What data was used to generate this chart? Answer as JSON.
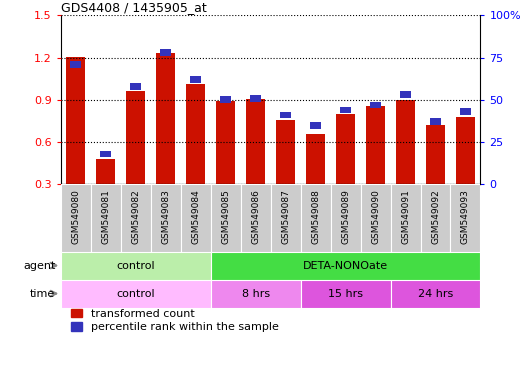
{
  "title": "GDS4408 / 1435905_at",
  "samples": [
    "GSM549080",
    "GSM549081",
    "GSM549082",
    "GSM549083",
    "GSM549084",
    "GSM549085",
    "GSM549086",
    "GSM549087",
    "GSM549088",
    "GSM549089",
    "GSM549090",
    "GSM549091",
    "GSM549092",
    "GSM549093"
  ],
  "red_values": [
    1.205,
    0.48,
    0.96,
    1.235,
    1.01,
    0.895,
    0.905,
    0.76,
    0.655,
    0.8,
    0.855,
    0.9,
    0.72,
    0.775
  ],
  "blue_values": [
    71,
    18,
    58,
    78,
    62,
    50,
    51,
    41,
    35,
    44,
    47,
    53,
    37,
    43
  ],
  "ylim_left": [
    0.3,
    1.5
  ],
  "ylim_right": [
    0,
    100
  ],
  "yticks_left": [
    0.3,
    0.6,
    0.9,
    1.2,
    1.5
  ],
  "yticks_right": [
    0,
    25,
    50,
    75,
    100
  ],
  "ytick_labels_right": [
    "0",
    "25",
    "50",
    "75",
    "100%"
  ],
  "bar_color_red": "#cc1100",
  "bar_color_blue": "#3333bb",
  "agent_row": [
    {
      "label": "control",
      "start": 0,
      "end": 5,
      "color": "#bbeeaa"
    },
    {
      "label": "DETA-NONOate",
      "start": 5,
      "end": 14,
      "color": "#44dd44"
    }
  ],
  "time_row": [
    {
      "label": "control",
      "start": 0,
      "end": 5,
      "color": "#ffbbff"
    },
    {
      "label": "8 hrs",
      "start": 5,
      "end": 8,
      "color": "#ee88ee"
    },
    {
      "label": "15 hrs",
      "start": 8,
      "end": 11,
      "color": "#dd55dd"
    },
    {
      "label": "24 hrs",
      "start": 11,
      "end": 14,
      "color": "#dd55dd"
    }
  ],
  "legend_red_label": "transformed count",
  "legend_blue_label": "percentile rank within the sample",
  "bar_width": 0.65,
  "tick_bg_color": "#cccccc",
  "bg_color": "#ffffff"
}
